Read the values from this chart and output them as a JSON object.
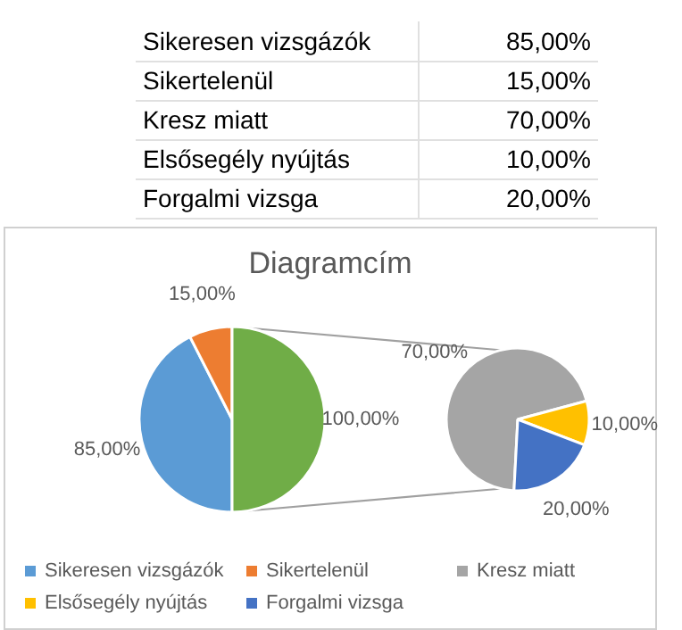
{
  "chart_data": [
    {
      "type": "other",
      "annotations": [
        "Sikeresen vizsgázók",
        "85,00%",
        "Sikertelenül",
        "15,00%",
        "Kresz miatt",
        "70,00%",
        "Elsősegély nyújtás",
        "10,00%",
        "Forgalmi vizsga",
        "20,00%"
      ]
    },
    {
      "type": "pie",
      "title": "Diagramcím",
      "categories": [
        "Sikeresen vizsgázók",
        "Sikertelenül",
        null
      ],
      "values": [
        85,
        15,
        100
      ],
      "colors": [
        "#5b9bd5",
        "#ed7d31",
        "#70ad47"
      ],
      "value_labels": [
        "85,00%",
        "15,00%",
        "100,00%"
      ],
      "legend": "bottom"
    },
    {
      "type": "pie",
      "categories": [
        "Kresz miatt",
        "Elsősegély nyújtás",
        "Forgalmi vizsga"
      ],
      "values": [
        70,
        10,
        20
      ],
      "colors": [
        "#a5a5a5",
        "#ffc000",
        "#4472c4"
      ],
      "value_labels": [
        "70,00%",
        "10,00%",
        "20,00%"
      ],
      "legend": "bottom"
    }
  ]
}
